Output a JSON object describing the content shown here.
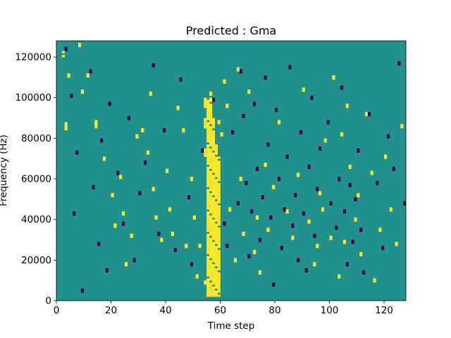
{
  "chart_data": {
    "type": "heatmap",
    "title": "Predicted : Gma",
    "xlabel": "Time step",
    "ylabel": "Frequency (Hz)",
    "xlim": [
      0,
      128
    ],
    "ylim": [
      0,
      128000
    ],
    "x_ticks": [
      0,
      20,
      40,
      60,
      80,
      100,
      120
    ],
    "y_ticks": [
      0,
      20000,
      40000,
      60000,
      80000,
      100000,
      120000
    ],
    "x_tick_labels": [
      "0",
      "20",
      "40",
      "60",
      "80",
      "100",
      "120"
    ],
    "y_tick_labels": [
      "0",
      "20000",
      "40000",
      "60000",
      "80000",
      "100000",
      "120000"
    ],
    "grid": false,
    "legend": "none",
    "colormap": "viridis",
    "colors": {
      "background": "#21918c",
      "low": "#440154",
      "high": "#fde725"
    },
    "rows": 128,
    "cols": 128,
    "row_height_hz": 1000,
    "column_bins_note": "x = time step index, y = frequency bin (1000 Hz each); cells list non-background values",
    "cells_high": [
      [
        2,
        122
      ],
      [
        2,
        120
      ],
      [
        3,
        87
      ],
      [
        3,
        86
      ],
      [
        3,
        85
      ],
      [
        3,
        84
      ],
      [
        4,
        111
      ],
      [
        4,
        110
      ],
      [
        8,
        126
      ],
      [
        8,
        125
      ],
      [
        9,
        103
      ],
      [
        9,
        102
      ],
      [
        11,
        111
      ],
      [
        11,
        110
      ],
      [
        14,
        88
      ],
      [
        14,
        87
      ],
      [
        14,
        86
      ],
      [
        14,
        85
      ],
      [
        17,
        70
      ],
      [
        17,
        69
      ],
      [
        20,
        52
      ],
      [
        20,
        51
      ],
      [
        21,
        37
      ],
      [
        21,
        36
      ],
      [
        23,
        61
      ],
      [
        23,
        60
      ],
      [
        24,
        43
      ],
      [
        24,
        42
      ],
      [
        25,
        18
      ],
      [
        25,
        17
      ],
      [
        27,
        32
      ],
      [
        27,
        31
      ],
      [
        29,
        81
      ],
      [
        29,
        80
      ],
      [
        31,
        84
      ],
      [
        31,
        83
      ],
      [
        33,
        73
      ],
      [
        33,
        72
      ],
      [
        34,
        102
      ],
      [
        34,
        101
      ],
      [
        35,
        55
      ],
      [
        35,
        54
      ],
      [
        36,
        41
      ],
      [
        36,
        40
      ],
      [
        38,
        30
      ],
      [
        38,
        29
      ],
      [
        40,
        64
      ],
      [
        40,
        63
      ],
      [
        41,
        45
      ],
      [
        41,
        44
      ],
      [
        42,
        33
      ],
      [
        42,
        32
      ],
      [
        44,
        95
      ],
      [
        44,
        94
      ],
      [
        46,
        84
      ],
      [
        46,
        83
      ],
      [
        47,
        27
      ],
      [
        47,
        26
      ],
      [
        49,
        60
      ],
      [
        49,
        59
      ],
      [
        50,
        41
      ],
      [
        50,
        40
      ],
      [
        51,
        12
      ],
      [
        51,
        11
      ],
      [
        52,
        27
      ],
      [
        52,
        26
      ],
      [
        54,
        9
      ],
      [
        54,
        8
      ],
      [
        55,
        92
      ],
      [
        55,
        91
      ],
      [
        56,
        102
      ],
      [
        56,
        101
      ],
      [
        58,
        73
      ],
      [
        58,
        72
      ],
      [
        59,
        88
      ],
      [
        59,
        87
      ],
      [
        60,
        82
      ],
      [
        60,
        81
      ],
      [
        61,
        108
      ],
      [
        61,
        107
      ],
      [
        62,
        96
      ],
      [
        62,
        95
      ],
      [
        63,
        45
      ],
      [
        63,
        44
      ],
      [
        65,
        20
      ],
      [
        65,
        19
      ],
      [
        66,
        114
      ],
      [
        66,
        113
      ],
      [
        67,
        60
      ],
      [
        67,
        59
      ],
      [
        68,
        33
      ],
      [
        68,
        32
      ],
      [
        70,
        103
      ],
      [
        70,
        102
      ],
      [
        72,
        24
      ],
      [
        72,
        23
      ],
      [
        73,
        41
      ],
      [
        73,
        40
      ],
      [
        74,
        14
      ],
      [
        74,
        13
      ],
      [
        76,
        67
      ],
      [
        76,
        66
      ],
      [
        77,
        35
      ],
      [
        77,
        34
      ],
      [
        79,
        56
      ],
      [
        79,
        55
      ],
      [
        81,
        88
      ],
      [
        81,
        87
      ],
      [
        84,
        44
      ],
      [
        84,
        43
      ],
      [
        86,
        31
      ],
      [
        86,
        30
      ],
      [
        88,
        62
      ],
      [
        88,
        61
      ],
      [
        90,
        104
      ],
      [
        90,
        103
      ],
      [
        92,
        39
      ],
      [
        92,
        38
      ],
      [
        94,
        18
      ],
      [
        94,
        17
      ],
      [
        95,
        27
      ],
      [
        95,
        26
      ],
      [
        96,
        53
      ],
      [
        96,
        52
      ],
      [
        97,
        45
      ],
      [
        97,
        44
      ],
      [
        98,
        79
      ],
      [
        98,
        78
      ],
      [
        100,
        31
      ],
      [
        100,
        30
      ],
      [
        101,
        110
      ],
      [
        101,
        109
      ],
      [
        103,
        12
      ],
      [
        103,
        11
      ],
      [
        104,
        82
      ],
      [
        104,
        81
      ],
      [
        105,
        29
      ],
      [
        105,
        28
      ],
      [
        106,
        96
      ],
      [
        106,
        95
      ],
      [
        107,
        66
      ],
      [
        107,
        65
      ],
      [
        109,
        40
      ],
      [
        109,
        39
      ],
      [
        110,
        52
      ],
      [
        110,
        51
      ],
      [
        111,
        23
      ],
      [
        111,
        22
      ],
      [
        113,
        92
      ],
      [
        113,
        91
      ],
      [
        115,
        63
      ],
      [
        115,
        62
      ],
      [
        116,
        10
      ],
      [
        116,
        9
      ],
      [
        118,
        35
      ],
      [
        118,
        34
      ],
      [
        120,
        71
      ],
      [
        120,
        70
      ],
      [
        122,
        45
      ],
      [
        122,
        44
      ],
      [
        124,
        28
      ],
      [
        124,
        27
      ],
      [
        126,
        86
      ],
      [
        126,
        85
      ]
    ],
    "cells_low": [
      [
        3,
        124
      ],
      [
        3,
        123
      ],
      [
        5,
        101
      ],
      [
        5,
        100
      ],
      [
        6,
        43
      ],
      [
        6,
        42
      ],
      [
        7,
        73
      ],
      [
        7,
        72
      ],
      [
        9,
        5
      ],
      [
        9,
        4
      ],
      [
        12,
        113
      ],
      [
        12,
        112
      ],
      [
        13,
        56
      ],
      [
        13,
        55
      ],
      [
        15,
        28
      ],
      [
        15,
        27
      ],
      [
        16,
        79
      ],
      [
        16,
        78
      ],
      [
        18,
        15
      ],
      [
        18,
        14
      ],
      [
        19,
        97
      ],
      [
        19,
        96
      ],
      [
        22,
        63
      ],
      [
        22,
        62
      ],
      [
        24,
        38
      ],
      [
        24,
        37
      ],
      [
        26,
        90
      ],
      [
        26,
        89
      ],
      [
        28,
        20
      ],
      [
        28,
        19
      ],
      [
        30,
        53
      ],
      [
        30,
        52
      ],
      [
        32,
        68
      ],
      [
        32,
        67
      ],
      [
        35,
        116
      ],
      [
        35,
        115
      ],
      [
        37,
        33
      ],
      [
        37,
        32
      ],
      [
        39,
        84
      ],
      [
        39,
        83
      ],
      [
        43,
        25
      ],
      [
        43,
        24
      ],
      [
        45,
        109
      ],
      [
        45,
        108
      ],
      [
        48,
        51
      ],
      [
        48,
        50
      ],
      [
        49,
        18
      ],
      [
        49,
        17
      ],
      [
        53,
        74
      ],
      [
        53,
        73
      ],
      [
        57,
        99
      ],
      [
        57,
        98
      ],
      [
        61,
        38
      ],
      [
        61,
        37
      ],
      [
        62,
        27
      ],
      [
        62,
        26
      ],
      [
        64,
        83
      ],
      [
        64,
        82
      ],
      [
        66,
        48
      ],
      [
        66,
        47
      ],
      [
        67,
        113
      ],
      [
        67,
        112
      ],
      [
        68,
        91
      ],
      [
        68,
        90
      ],
      [
        69,
        58
      ],
      [
        69,
        57
      ],
      [
        70,
        22
      ],
      [
        70,
        21
      ],
      [
        71,
        44
      ],
      [
        71,
        43
      ],
      [
        72,
        97
      ],
      [
        72,
        96
      ],
      [
        73,
        65
      ],
      [
        73,
        64
      ],
      [
        74,
        30
      ],
      [
        74,
        29
      ],
      [
        75,
        51
      ],
      [
        75,
        50
      ],
      [
        76,
        110
      ],
      [
        76,
        109
      ],
      [
        77,
        77
      ],
      [
        77,
        76
      ],
      [
        78,
        41
      ],
      [
        78,
        40
      ],
      [
        79,
        8
      ],
      [
        79,
        7
      ],
      [
        80,
        94
      ],
      [
        80,
        93
      ],
      [
        81,
        60
      ],
      [
        81,
        59
      ],
      [
        82,
        26
      ],
      [
        82,
        25
      ],
      [
        83,
        45
      ],
      [
        83,
        44
      ],
      [
        84,
        71
      ],
      [
        84,
        70
      ],
      [
        85,
        115
      ],
      [
        85,
        114
      ],
      [
        86,
        37
      ],
      [
        86,
        36
      ],
      [
        87,
        52
      ],
      [
        87,
        51
      ],
      [
        88,
        20
      ],
      [
        88,
        19
      ],
      [
        89,
        83
      ],
      [
        89,
        82
      ],
      [
        90,
        43
      ],
      [
        90,
        42
      ],
      [
        91,
        15
      ],
      [
        91,
        14
      ],
      [
        92,
        66
      ],
      [
        92,
        65
      ],
      [
        93,
        100
      ],
      [
        93,
        99
      ],
      [
        94,
        32
      ],
      [
        94,
        31
      ],
      [
        95,
        55
      ],
      [
        95,
        54
      ],
      [
        96,
        75
      ],
      [
        96,
        74
      ],
      [
        99,
        88
      ],
      [
        99,
        87
      ],
      [
        100,
        48
      ],
      [
        100,
        47
      ],
      [
        102,
        36
      ],
      [
        102,
        35
      ],
      [
        103,
        60
      ],
      [
        103,
        59
      ],
      [
        104,
        105
      ],
      [
        104,
        104
      ],
      [
        105,
        44
      ],
      [
        105,
        43
      ],
      [
        106,
        18
      ],
      [
        106,
        17
      ],
      [
        107,
        57
      ],
      [
        107,
        56
      ],
      [
        108,
        29
      ],
      [
        108,
        28
      ],
      [
        109,
        50
      ],
      [
        109,
        49
      ],
      [
        110,
        74
      ],
      [
        110,
        73
      ],
      [
        111,
        35
      ],
      [
        111,
        34
      ],
      [
        112,
        14
      ],
      [
        112,
        13
      ],
      [
        114,
        92
      ],
      [
        114,
        91
      ],
      [
        117,
        58
      ],
      [
        117,
        57
      ],
      [
        119,
        26
      ],
      [
        119,
        25
      ],
      [
        121,
        81
      ],
      [
        121,
        80
      ],
      [
        123,
        65
      ],
      [
        123,
        64
      ],
      [
        125,
        117
      ],
      [
        125,
        116
      ],
      [
        127,
        48
      ],
      [
        127,
        47
      ]
    ]
  }
}
